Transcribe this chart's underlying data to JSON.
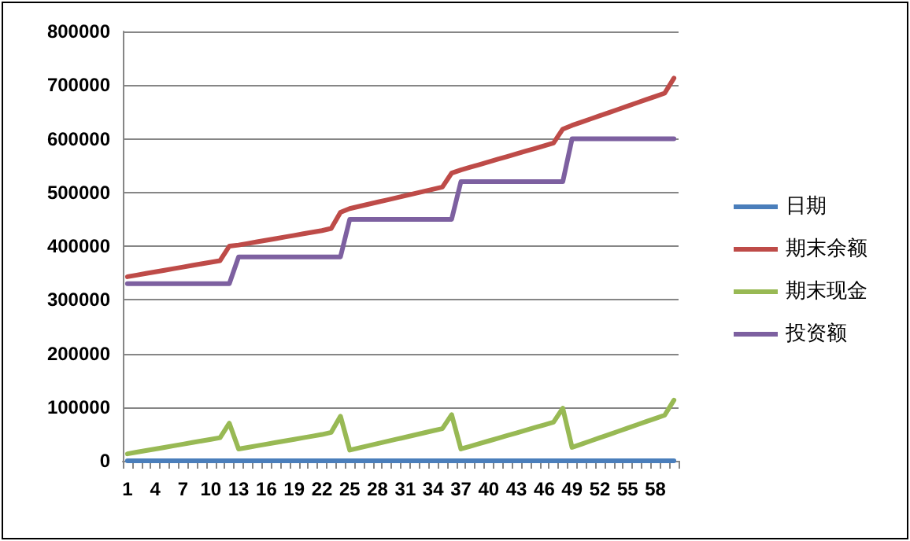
{
  "chart_data": {
    "type": "line",
    "categories": [
      "1",
      null,
      null,
      "4",
      null,
      null,
      "7",
      null,
      null,
      "10",
      null,
      null,
      "13",
      null,
      null,
      "16",
      null,
      null,
      "19",
      null,
      null,
      "22",
      null,
      null,
      "25",
      null,
      null,
      "28",
      null,
      null,
      "31",
      null,
      null,
      "34",
      null,
      null,
      "37",
      null,
      null,
      "40",
      null,
      null,
      "43",
      null,
      null,
      "46",
      null,
      null,
      "49",
      null,
      null,
      "52",
      null,
      null,
      "55",
      null,
      null,
      "58",
      null,
      null
    ],
    "series": [
      {
        "name": "日期",
        "color": "#4a7ebb",
        "values": [
          1,
          2,
          3,
          4,
          5,
          6,
          7,
          8,
          9,
          10,
          11,
          12,
          13,
          14,
          15,
          16,
          17,
          18,
          19,
          20,
          21,
          22,
          23,
          24,
          25,
          26,
          27,
          28,
          29,
          30,
          31,
          32,
          33,
          34,
          35,
          36,
          37,
          38,
          39,
          40,
          41,
          42,
          43,
          44,
          45,
          46,
          47,
          48,
          49,
          50,
          51,
          52,
          53,
          54,
          55,
          56,
          57,
          58,
          59,
          60
        ]
      },
      {
        "name": "期末余额",
        "color": "#be4b48",
        "values": [
          343000,
          346000,
          349000,
          352000,
          355000,
          358000,
          361000,
          364000,
          367000,
          370000,
          373000,
          400000,
          402000,
          405000,
          408000,
          411000,
          414000,
          417000,
          420000,
          423000,
          426000,
          429000,
          433000,
          463000,
          470000,
          474000,
          478000,
          482000,
          486000,
          490000,
          494000,
          498000,
          502000,
          506000,
          510000,
          536000,
          542000,
          547000,
          552000,
          557000,
          562000,
          567000,
          572000,
          577000,
          582000,
          587000,
          592000,
          618000,
          625000,
          631000,
          637000,
          643000,
          649000,
          655000,
          661000,
          667000,
          673000,
          679000,
          685000,
          713000
        ]
      },
      {
        "name": "期末现金",
        "color": "#98b954",
        "values": [
          13000,
          16000,
          19000,
          22000,
          25000,
          28000,
          31000,
          34000,
          37000,
          40000,
          43000,
          70000,
          22000,
          25000,
          28000,
          31000,
          34000,
          37000,
          40000,
          43000,
          46000,
          49000,
          53000,
          83000,
          20000,
          24000,
          28000,
          32000,
          36000,
          40000,
          44000,
          48000,
          52000,
          56000,
          60000,
          86000,
          22000,
          27000,
          32000,
          37000,
          42000,
          47000,
          52000,
          57000,
          62000,
          67000,
          72000,
          98000,
          25000,
          31000,
          37000,
          43000,
          49000,
          55000,
          61000,
          67000,
          73000,
          79000,
          85000,
          113000
        ]
      },
      {
        "name": "投资额",
        "color": "#7d60a0",
        "values": [
          330000,
          330000,
          330000,
          330000,
          330000,
          330000,
          330000,
          330000,
          330000,
          330000,
          330000,
          330000,
          380000,
          380000,
          380000,
          380000,
          380000,
          380000,
          380000,
          380000,
          380000,
          380000,
          380000,
          380000,
          450000,
          450000,
          450000,
          450000,
          450000,
          450000,
          450000,
          450000,
          450000,
          450000,
          450000,
          450000,
          520000,
          520000,
          520000,
          520000,
          520000,
          520000,
          520000,
          520000,
          520000,
          520000,
          520000,
          520000,
          600000,
          600000,
          600000,
          600000,
          600000,
          600000,
          600000,
          600000,
          600000,
          600000,
          600000,
          600000
        ]
      }
    ],
    "ylim": [
      0,
      800000
    ],
    "yticks": [
      0,
      100000,
      200000,
      300000,
      400000,
      500000,
      600000,
      700000,
      800000
    ],
    "grid": "y",
    "legend": "right",
    "marker": "none",
    "line_style": "solid"
  }
}
